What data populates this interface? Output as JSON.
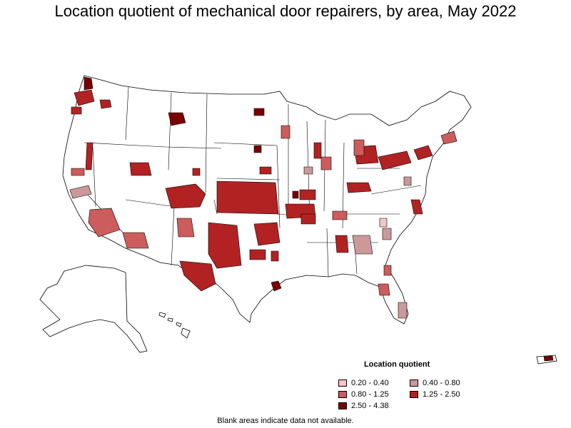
{
  "title": "Location quotient of mechanical door repairers, by area, May 2022",
  "legend": {
    "title": "Location quotient",
    "items": [
      {
        "label": "0.20 - 0.40",
        "color": "#f4c6c6"
      },
      {
        "label": "0.40 - 0.80",
        "color": "#cc9999"
      },
      {
        "label": "0.80 - 1.25",
        "color": "#cd5c5c"
      },
      {
        "label": "1.25 - 2.50",
        "color": "#b22222"
      },
      {
        "label": "2.50 - 4.38",
        "color": "#7a0000"
      }
    ]
  },
  "footnote": "Blank areas indicate data not available.",
  "colors": {
    "outline": "#000000",
    "blank": "#ffffff"
  }
}
